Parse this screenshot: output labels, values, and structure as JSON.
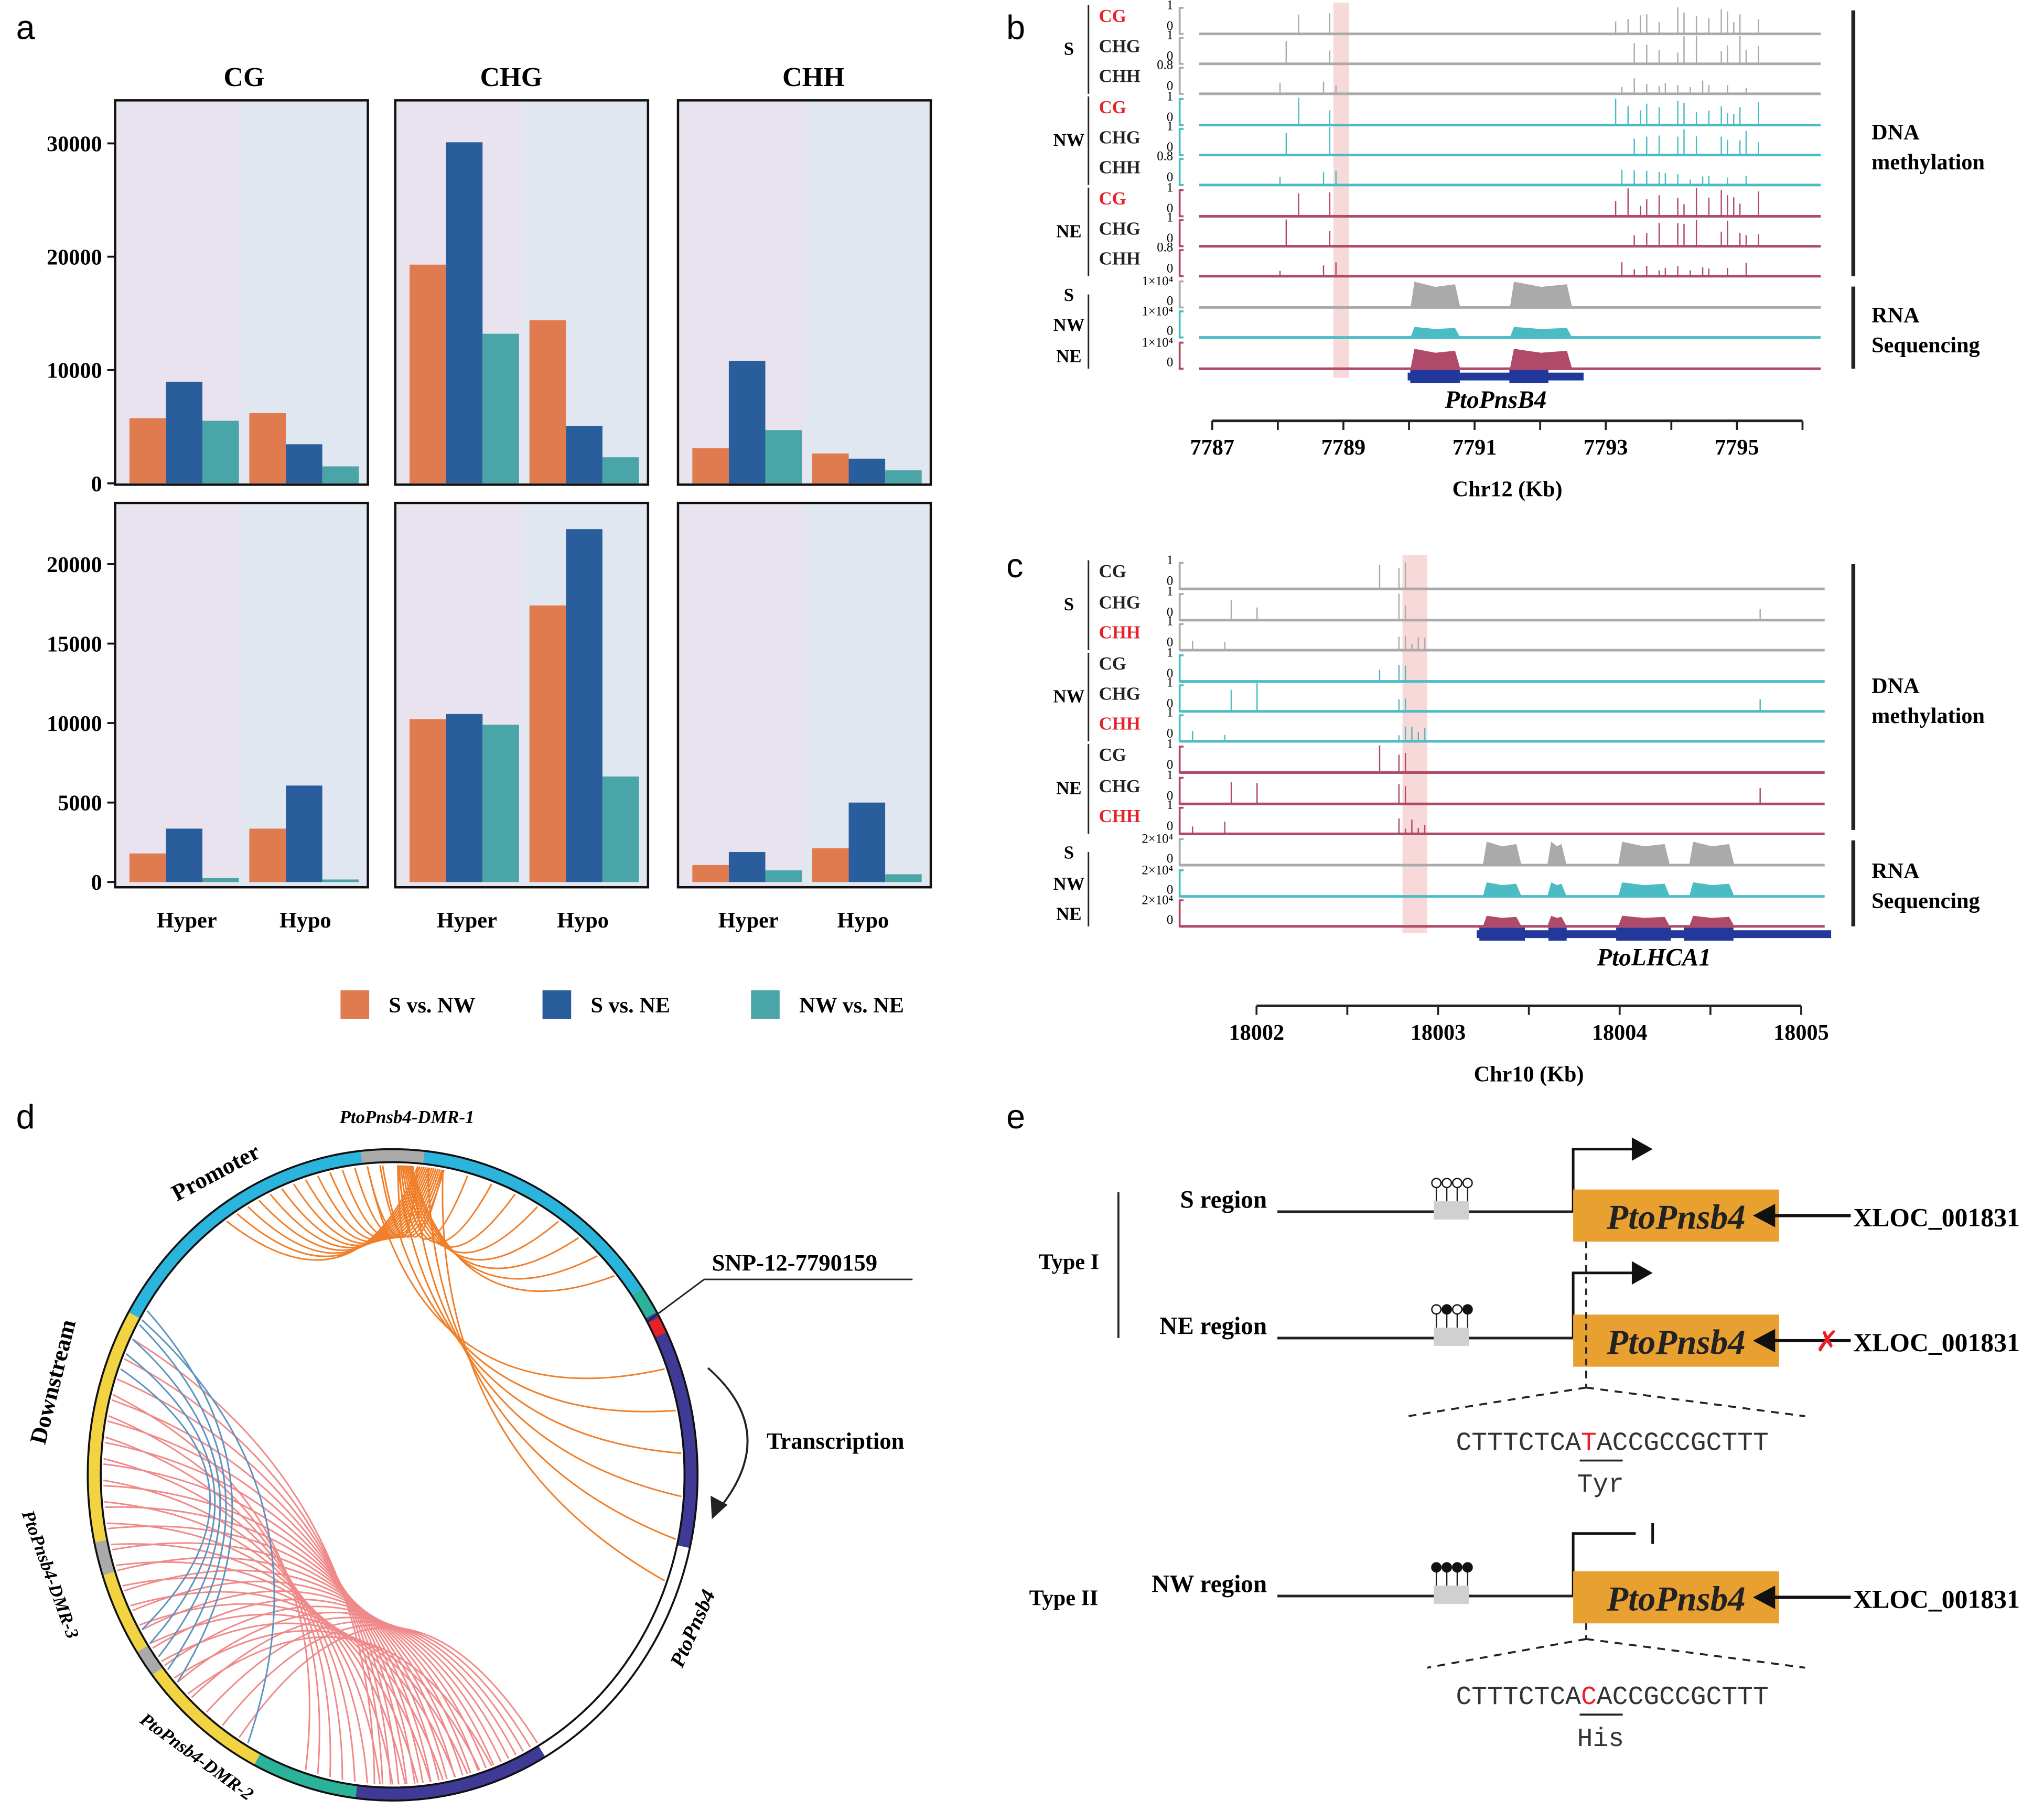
{
  "panel_labels": {
    "a": "a",
    "b": "b",
    "c": "c",
    "d": "d",
    "e": "e"
  },
  "chart_data": {
    "type": "bar",
    "contexts": [
      "CG",
      "CHG",
      "CHH"
    ],
    "categories": [
      "Hyper",
      "Hypo"
    ],
    "series": [
      {
        "name": "S vs. NW",
        "color": "#e07b50"
      },
      {
        "name": "S vs. NE",
        "color": "#2a5d9c"
      },
      {
        "name": "NW vs. NE",
        "color": "#4aa5a8"
      }
    ],
    "background_colors": {
      "Hyper": "#e8e3ee",
      "Hypo": "#e1e7f0"
    },
    "legend_placement": "bottom",
    "grid": false,
    "rows": [
      {
        "yticks": [
          "0",
          "10000",
          "20000",
          "30000"
        ],
        "ylim": [
          0,
          33800
        ],
        "values": {
          "CG": {
            "Hyper": [
              5750,
              8970,
              5520
            ],
            "Hypo": [
              6200,
              3450,
              1500
            ]
          },
          "CHG": {
            "Hyper": [
              19300,
              30100,
              13200
            ],
            "Hypo": [
              14400,
              5060,
              2300
            ]
          },
          "CHH": {
            "Hyper": [
              3100,
              10800,
              4700
            ],
            "Hypo": [
              2640,
              2180,
              1150
            ]
          }
        }
      },
      {
        "yticks": [
          "0",
          "5000",
          "10000",
          "15000",
          "20000"
        ],
        "ylim": [
          0,
          23850
        ],
        "values": {
          "CG": {
            "Hyper": [
              1800,
              3360,
              250
            ],
            "Hypo": [
              3360,
              6070,
              160
            ]
          },
          "CHG": {
            "Hyper": [
              10250,
              10570,
              9900
            ],
            "Hypo": [
              17400,
              22200,
              6640
            ]
          },
          "CHH": {
            "Hyper": [
              1070,
              1890,
              740
            ],
            "Hypo": [
              2130,
              5000,
              490
            ]
          }
        }
      }
    ]
  },
  "panel_b": {
    "samples": [
      "S",
      "NW",
      "NE"
    ],
    "contexts": [
      "CG",
      "CHG",
      "CHH"
    ],
    "context_colors": [
      "#e8202a",
      "#222222",
      "#222222"
    ],
    "scale_labels": [
      "1",
      "0",
      "1",
      "0",
      "0.8",
      "0"
    ],
    "rna_scale": [
      "1×10⁴",
      "0"
    ],
    "gene": "PtoPnsB4",
    "xticks": [
      "7787",
      "7789",
      "7791",
      "7793",
      "7795"
    ],
    "xlabel": "Chr12 (Kb)",
    "dna_label": [
      "DNA",
      "methylation"
    ],
    "rna_label": [
      "RNA",
      "Sequencing"
    ]
  },
  "panel_c": {
    "samples": [
      "S",
      "NW",
      "NE"
    ],
    "contexts": [
      "CG",
      "CHG",
      "CHH"
    ],
    "context_colors": [
      "#222222",
      "#222222",
      "#e8202a"
    ],
    "scale_labels": [
      "1",
      "0",
      "1",
      "0",
      "1",
      "0"
    ],
    "rna_scale": [
      "2×10⁴",
      "0"
    ],
    "gene": "PtoLHCA1",
    "xticks": [
      "18002",
      "18003",
      "18004",
      "18005"
    ],
    "xlabel": "Chr10 (Kb)",
    "dna_label": [
      "DNA",
      "methylation"
    ],
    "rna_label": [
      "RNA",
      "Sequencing"
    ]
  },
  "track_colors": {
    "S": "#aaaaaa",
    "NW": "#4bbcc4",
    "NE": "#b04a6a",
    "highlight": "#f7d9d9",
    "gene": "#22389a"
  },
  "panel_d": {
    "dmr1": "PtoPnsb4-DMR-1",
    "promoter": "Promoter",
    "snp": "SNP-12-7790159",
    "transcription": "Transcription",
    "downstream": "Downstream",
    "dmr3": "PtoPnsb4-DMR-3",
    "dmr2": "PtoPnsb4-DMR-2",
    "gene": "PtoPnsb4",
    "colors": {
      "promoter": "#2bb5dd",
      "gene": "#3f3a96",
      "downstream": "#f2d443",
      "dmr": "#aaaaaa",
      "link_teal": "#2bb39a",
      "snp": "#e8202a",
      "chord_orange": "#f07f2a",
      "chord_pink": "#f08a8a",
      "chord_blue": "#5b95c0"
    }
  },
  "panel_e": {
    "type1": "Type I",
    "type2": "Type II",
    "rows": [
      {
        "region": "S region",
        "gene": "PtoPnsb4",
        "xloc": "XLOC_001831",
        "methylation": [
          0,
          0,
          0,
          0
        ],
        "blocked_regulation": false,
        "transcription": "active"
      },
      {
        "region": "NE region",
        "gene": "PtoPnsb4",
        "xloc": "XLOC_001831",
        "methylation": [
          0,
          1,
          0,
          1
        ],
        "blocked_regulation": true,
        "transcription": "active"
      },
      {
        "region": "NW region",
        "gene": "PtoPnsb4",
        "xloc": "XLOC_001831",
        "methylation": [
          1,
          1,
          1,
          1
        ],
        "blocked_regulation": false,
        "transcription": "repressed"
      }
    ],
    "seq1": {
      "before": "CTTTCTCA",
      "snp": "T",
      "after": "ACCGCCGCTTT",
      "aa": "Tyr"
    },
    "seq2": {
      "before": "CTTTCTCA",
      "snp": "C",
      "after": "ACCGCCGCTTT",
      "aa": "His"
    },
    "gene_color": "#e8a030"
  }
}
